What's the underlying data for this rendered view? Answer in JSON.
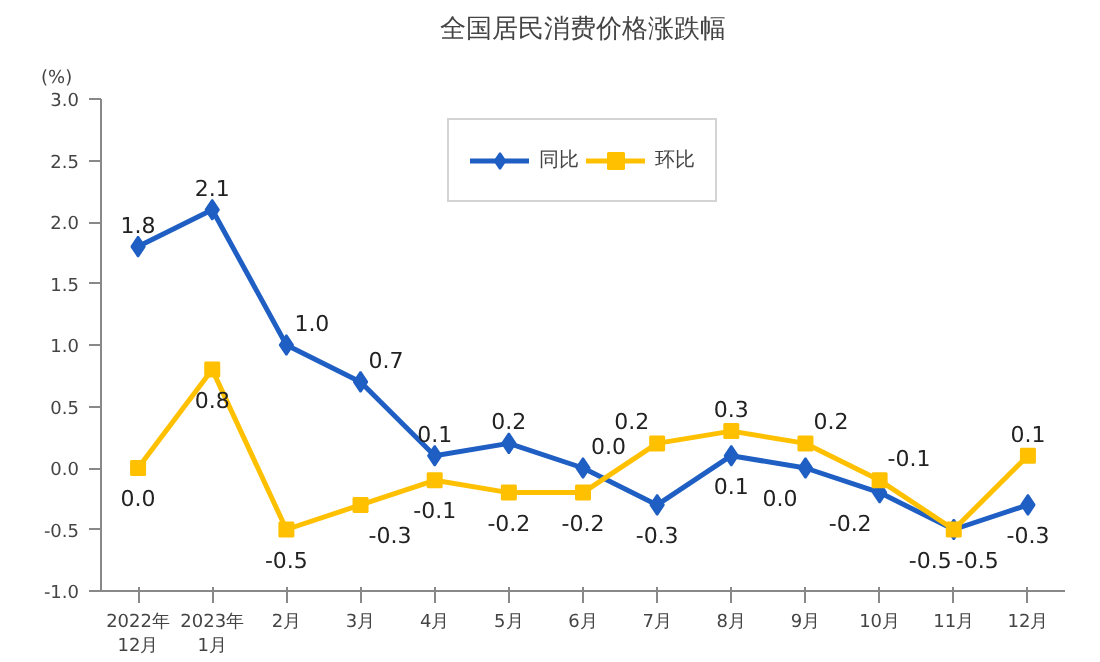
{
  "chart_data": {
    "type": "line",
    "title": "全国居民消费价格涨跌幅",
    "ylabel": "(%)",
    "categories": [
      "2022年\n12月",
      "2023年\n1月",
      "2月",
      "3月",
      "4月",
      "5月",
      "6月",
      "7月",
      "8月",
      "9月",
      "10月",
      "11月",
      "12月"
    ],
    "series": [
      {
        "name": "同比",
        "color": "#1f5fc4",
        "marker": "diamond",
        "values": [
          1.8,
          2.1,
          1.0,
          0.7,
          0.1,
          0.2,
          0.0,
          -0.3,
          0.1,
          0.0,
          -0.2,
          -0.5,
          -0.3
        ],
        "value_labels": [
          "1.8",
          "2.1",
          "1.0",
          "0.7",
          "0.1",
          "0.2",
          "0.0",
          "-0.3",
          "0.1",
          "0.0",
          "-0.2",
          "-0.5",
          "-0.3"
        ]
      },
      {
        "name": "环比",
        "color": "#ffc000",
        "marker": "square",
        "values": [
          0.0,
          0.8,
          -0.5,
          -0.3,
          -0.1,
          -0.2,
          -0.2,
          0.2,
          0.3,
          0.2,
          -0.1,
          -0.5,
          0.1
        ],
        "value_labels": [
          "0.0",
          "0.8",
          "-0.5",
          "-0.3",
          "-0.1",
          "-0.2",
          "-0.2",
          "0.2",
          "0.3",
          "0.2",
          "-0.1",
          "-0.5",
          "0.1"
        ]
      }
    ],
    "ylim": [
      -1.0,
      3.0
    ],
    "yticks": [
      {
        "value": -1.0,
        "label": "-1.0"
      },
      {
        "value": -0.5,
        "label": "-0.5"
      },
      {
        "value": 0,
        "label": "0.0"
      },
      {
        "value": 0.5,
        "label": "0.5"
      },
      {
        "value": 1.0,
        "label": "1.0"
      },
      {
        "value": 1.5,
        "label": "1.5"
      },
      {
        "value": 2.0,
        "label": "2.0"
      },
      {
        "value": 2.5,
        "label": "2.5"
      },
      {
        "value": 3.0,
        "label": "3.0"
      }
    ],
    "data_labels": true,
    "legend": "top",
    "grid": false,
    "line_style": "solid"
  }
}
